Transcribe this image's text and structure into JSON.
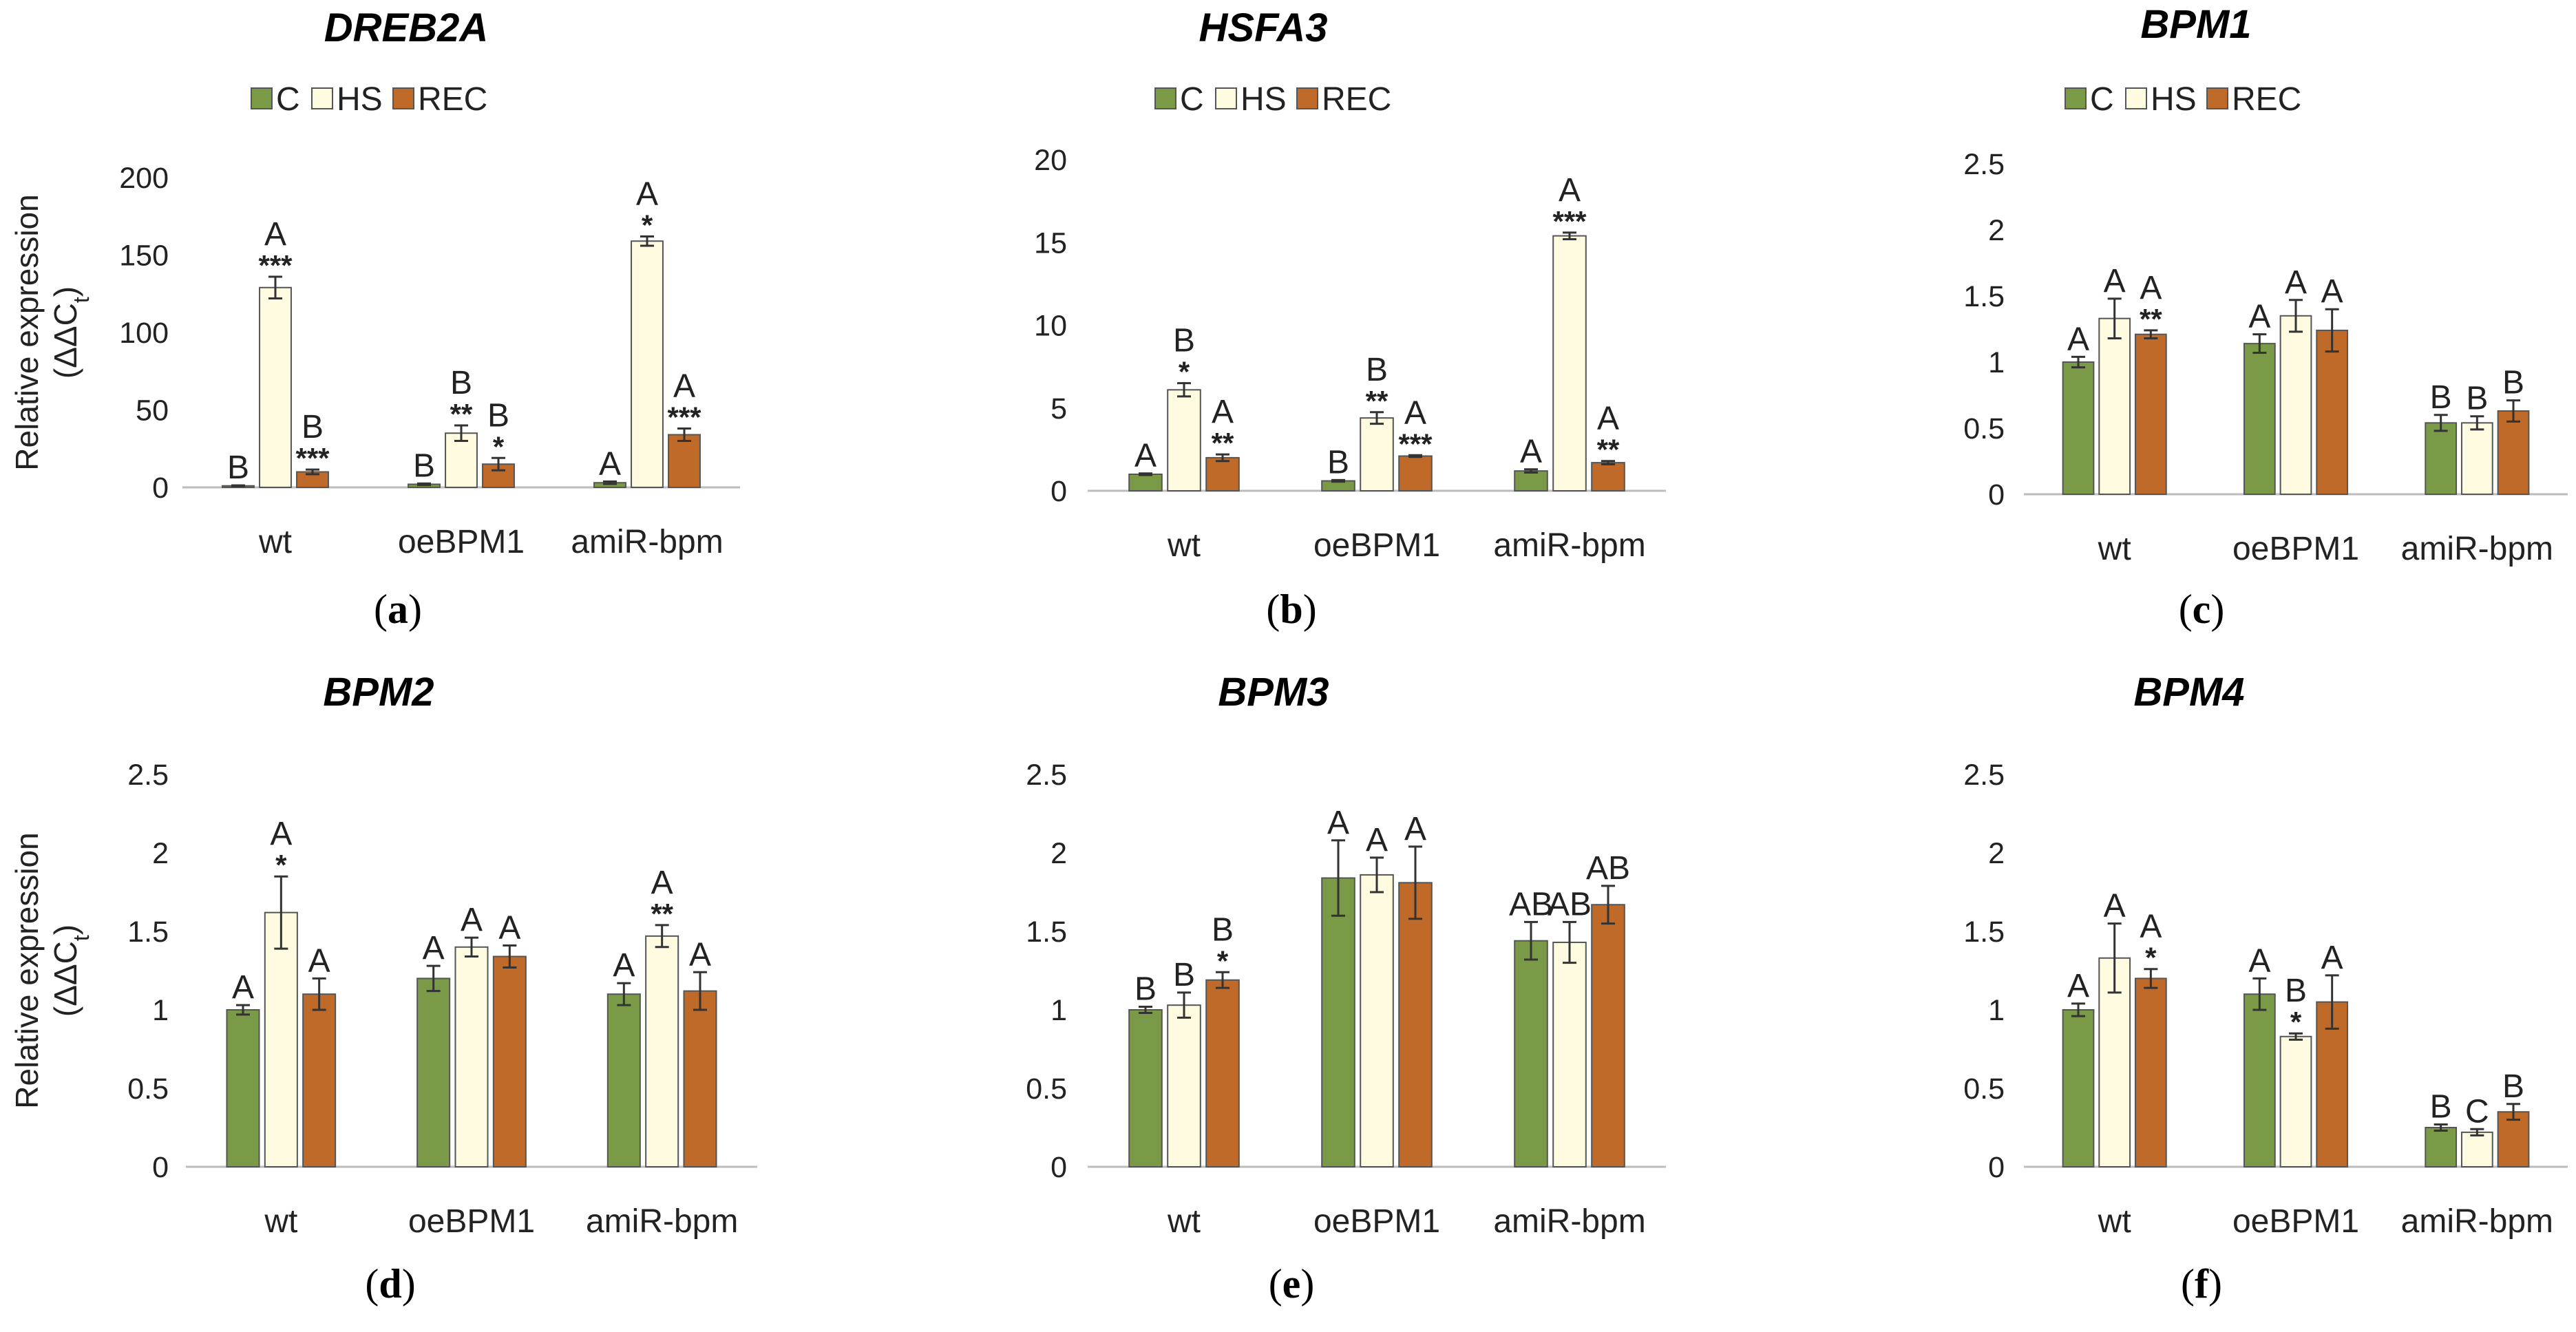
{
  "figure": {
    "ylabel_line1": "Relative expression",
    "ylabel_line2": "(ΔΔC",
    "ylabel_sub": "t",
    "ylabel_close": ")"
  },
  "legend": {
    "items": [
      {
        "label": "C",
        "color": "#7a9a48"
      },
      {
        "label": "HS",
        "color": "#fffbe0"
      },
      {
        "label": "REC",
        "color": "#bf6a28"
      }
    ]
  },
  "chart_data": [
    {
      "type": "bar",
      "panel": "a",
      "title": "DREB2A",
      "categories": [
        "wt",
        "oeBPM1",
        "amiR-bpm"
      ],
      "ylim": [
        0,
        200
      ],
      "yticks": [
        0,
        50,
        100,
        150,
        200
      ],
      "ylabel": "Relative expression (ΔΔCt)",
      "xlabel": "",
      "series": [
        {
          "name": "C",
          "values": [
            1,
            2,
            3
          ],
          "errors": [
            0.3,
            0.5,
            0.8
          ],
          "letters": [
            "B",
            "B",
            "A"
          ],
          "stars": [
            "",
            "",
            ""
          ]
        },
        {
          "name": "HS",
          "values": [
            129,
            35,
            159
          ],
          "errors": [
            7,
            5,
            3
          ],
          "letters": [
            "A",
            "B",
            "A"
          ],
          "stars": [
            "***",
            "**",
            "*"
          ]
        },
        {
          "name": "REC",
          "values": [
            10,
            15,
            34
          ],
          "errors": [
            1.5,
            4,
            4
          ],
          "letters": [
            "B",
            "B",
            "A"
          ],
          "stars": [
            "***",
            "*",
            "***"
          ]
        }
      ]
    },
    {
      "type": "bar",
      "panel": "b",
      "title": "HSFA3",
      "categories": [
        "wt",
        "oeBPM1",
        "amiR-bpm"
      ],
      "ylim": [
        0,
        20
      ],
      "yticks": [
        0,
        5,
        10,
        15,
        20
      ],
      "ylabel": "",
      "xlabel": "",
      "series": [
        {
          "name": "C",
          "values": [
            1.0,
            0.6,
            1.2
          ],
          "errors": [
            0.05,
            0.05,
            0.1
          ],
          "letters": [
            "A",
            "B",
            "A"
          ],
          "stars": [
            "",
            "",
            ""
          ]
        },
        {
          "name": "HS",
          "values": [
            6.1,
            4.4,
            15.4
          ],
          "errors": [
            0.4,
            0.35,
            0.2
          ],
          "letters": [
            "B",
            "B",
            "A"
          ],
          "stars": [
            "*",
            "**",
            "***"
          ]
        },
        {
          "name": "REC",
          "values": [
            2.0,
            2.1,
            1.7
          ],
          "errors": [
            0.2,
            0.05,
            0.1
          ],
          "letters": [
            "A",
            "A",
            "A"
          ],
          "stars": [
            "**",
            "***",
            "**"
          ]
        }
      ]
    },
    {
      "type": "bar",
      "panel": "c",
      "title": "BPM1",
      "categories": [
        "wt",
        "oeBPM1",
        "amiR-bpm"
      ],
      "ylim": [
        0,
        2.5
      ],
      "yticks": [
        0,
        0.5,
        1,
        1.5,
        2,
        2.5
      ],
      "ylabel": "",
      "xlabel": "",
      "series": [
        {
          "name": "C",
          "values": [
            1.0,
            1.14,
            0.54
          ],
          "errors": [
            0.04,
            0.07,
            0.06
          ],
          "letters": [
            "A",
            "A",
            "B"
          ],
          "stars": [
            "",
            "",
            ""
          ]
        },
        {
          "name": "HS",
          "values": [
            1.33,
            1.35,
            0.54
          ],
          "errors": [
            0.15,
            0.12,
            0.05
          ],
          "letters": [
            "A",
            "A",
            "B"
          ],
          "stars": [
            "",
            "",
            ""
          ]
        },
        {
          "name": "REC",
          "values": [
            1.21,
            1.24,
            0.63
          ],
          "errors": [
            0.03,
            0.16,
            0.08
          ],
          "letters": [
            "A",
            "A",
            "B"
          ],
          "stars": [
            "**",
            "",
            ""
          ]
        }
      ]
    },
    {
      "type": "bar",
      "panel": "d",
      "title": "BPM2",
      "categories": [
        "wt",
        "oeBPM1",
        "amiR-bpm"
      ],
      "ylim": [
        0,
        2.5
      ],
      "yticks": [
        0,
        0.5,
        1,
        1.5,
        2,
        2.5
      ],
      "ylabel": "Relative expression (ΔΔCt)",
      "xlabel": "",
      "series": [
        {
          "name": "C",
          "values": [
            1.0,
            1.2,
            1.1
          ],
          "errors": [
            0.03,
            0.08,
            0.07
          ],
          "letters": [
            "A",
            "A",
            "A"
          ],
          "stars": [
            "",
            "",
            ""
          ]
        },
        {
          "name": "HS",
          "values": [
            1.62,
            1.4,
            1.47
          ],
          "errors": [
            0.23,
            0.06,
            0.07
          ],
          "letters": [
            "A",
            "A",
            "A"
          ],
          "stars": [
            "*",
            "",
            "**"
          ]
        },
        {
          "name": "REC",
          "values": [
            1.1,
            1.34,
            1.12
          ],
          "errors": [
            0.1,
            0.07,
            0.12
          ],
          "letters": [
            "A",
            "A",
            "A"
          ],
          "stars": [
            "",
            "",
            ""
          ]
        }
      ]
    },
    {
      "type": "bar",
      "panel": "e",
      "title": "BPM3",
      "categories": [
        "wt",
        "oeBPM1",
        "amiR-bpm"
      ],
      "ylim": [
        0,
        2.5
      ],
      "yticks": [
        0,
        0.5,
        1,
        1.5,
        2,
        2.5
      ],
      "ylabel": "",
      "xlabel": "",
      "series": [
        {
          "name": "C",
          "values": [
            1.0,
            1.84,
            1.44
          ],
          "errors": [
            0.02,
            0.24,
            0.12
          ],
          "letters": [
            "B",
            "A",
            "AB"
          ],
          "stars": [
            "",
            "",
            ""
          ]
        },
        {
          "name": "HS",
          "values": [
            1.03,
            1.86,
            1.43
          ],
          "errors": [
            0.08,
            0.11,
            0.13
          ],
          "letters": [
            "B",
            "A",
            "AB"
          ],
          "stars": [
            "",
            "",
            ""
          ]
        },
        {
          "name": "REC",
          "values": [
            1.19,
            1.81,
            1.67
          ],
          "errors": [
            0.05,
            0.23,
            0.12
          ],
          "letters": [
            "B",
            "A",
            "AB"
          ],
          "stars": [
            "*",
            "",
            ""
          ]
        }
      ]
    },
    {
      "type": "bar",
      "panel": "f",
      "title": "BPM4",
      "categories": [
        "wt",
        "oeBPM1",
        "amiR-bpm"
      ],
      "ylim": [
        0,
        2.5
      ],
      "yticks": [
        0,
        0.5,
        1,
        1.5,
        2,
        2.5
      ],
      "ylabel": "",
      "xlabel": "",
      "series": [
        {
          "name": "C",
          "values": [
            1.0,
            1.1,
            0.25
          ],
          "errors": [
            0.04,
            0.1,
            0.02
          ],
          "letters": [
            "A",
            "A",
            "B"
          ],
          "stars": [
            "",
            "",
            ""
          ]
        },
        {
          "name": "HS",
          "values": [
            1.33,
            0.83,
            0.22
          ],
          "errors": [
            0.22,
            0.02,
            0.02
          ],
          "letters": [
            "A",
            "B",
            "C"
          ],
          "stars": [
            "",
            "*",
            ""
          ]
        },
        {
          "name": "REC",
          "values": [
            1.2,
            1.05,
            0.35
          ],
          "errors": [
            0.06,
            0.17,
            0.05
          ],
          "letters": [
            "A",
            "A",
            "B"
          ],
          "stars": [
            "*",
            "",
            ""
          ]
        }
      ]
    }
  ]
}
